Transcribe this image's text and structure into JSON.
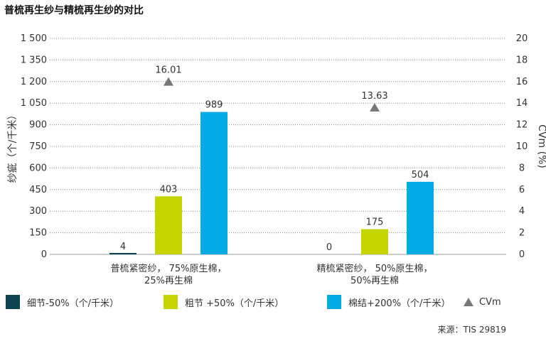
{
  "chart_data": {
    "type": "bar",
    "title": "普梳再生纱与精梳再生纱的对比",
    "categories": [
      [
        "普梳紧密纱， 75%原生棉，",
        "25%再生棉"
      ],
      [
        "精梳紧密纱， 50%原生棉，",
        "50%再生棉"
      ]
    ],
    "series": [
      {
        "name": "细节-50%（个/千米）",
        "color": "#0e4450",
        "values": [
          4,
          0
        ]
      },
      {
        "name": "粗节 +50%（个/千米）",
        "color": "#c6d400",
        "values": [
          403,
          175
        ]
      },
      {
        "name": "棉结+200%（个/千米）",
        "color": "#00ace3",
        "values": [
          989,
          504
        ]
      }
    ],
    "secondary_series": {
      "name": "CVm",
      "marker": "triangle",
      "color": "#777777",
      "values": [
        16.01,
        13.63
      ]
    },
    "ylabel": "纱疵（个/千米）",
    "ylabel2": "CVm (%)",
    "ylim": [
      0,
      1500
    ],
    "ylim2": [
      0,
      20
    ],
    "yticks": [
      "0",
      "150",
      "300",
      "450",
      "600",
      "750",
      "900",
      "1 050",
      "1 200",
      "1 350",
      "1 500"
    ],
    "yticks2": [
      "0",
      "2",
      "4",
      "6",
      "8",
      "10",
      "12",
      "14",
      "16",
      "18",
      "20"
    ],
    "grid": true,
    "legend_position": "bottom",
    "source": "来源：TIS 29819"
  }
}
